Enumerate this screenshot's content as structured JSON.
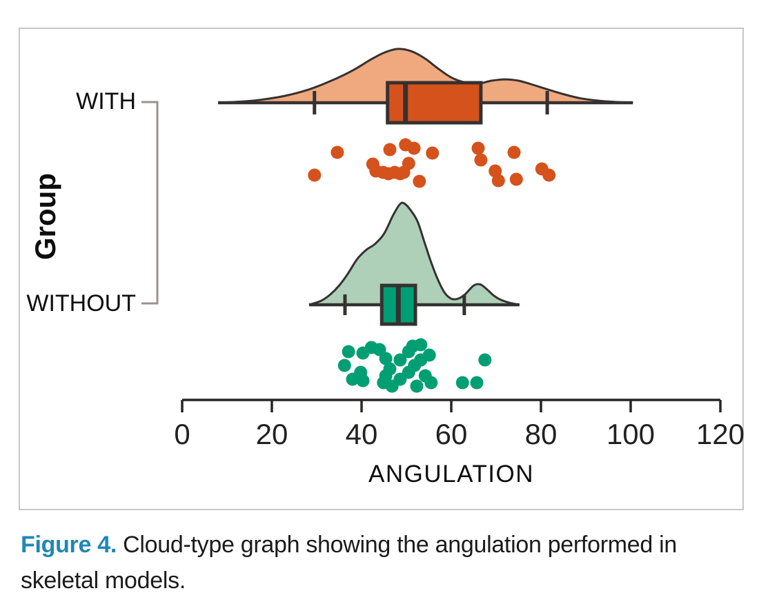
{
  "labels": {
    "y_axis": "Group",
    "x_axis": "ANGULATION"
  },
  "caption": {
    "prefix": "Figure 4.",
    "line1": "Cloud-type graph showing the angulation performed in",
    "line2": "skeletal models."
  },
  "colors": {
    "figure_label_blue": "#1f87b7",
    "outline_dark": "#363131",
    "axis_dark": "#282424",
    "bracket_gray": "#9b918f"
  },
  "chart_data": {
    "type": "raincloud (half-density + boxplot + jittered strip)",
    "title": "",
    "xlabel": "ANGULATION",
    "ylabel": "Group",
    "xlim": [
      0,
      120
    ],
    "x_ticks": [
      0,
      20,
      40,
      60,
      80,
      100,
      120
    ],
    "categories": [
      "WITH",
      "WITHOUT"
    ],
    "groups": [
      {
        "name": "WITH",
        "color": "#d5521c",
        "density_fill": "#f0a97e",
        "box": {
          "whisker_low": 29.5,
          "q1": 45.8,
          "median": 49.8,
          "q3": 66.6,
          "whisker_high": 81.4
        },
        "density_range": [
          8,
          100.5
        ],
        "density_profile": [
          [
            8,
            0
          ],
          [
            13,
            0.02
          ],
          [
            18,
            0.06
          ],
          [
            23,
            0.13
          ],
          [
            28,
            0.24
          ],
          [
            33,
            0.4
          ],
          [
            38,
            0.6
          ],
          [
            42,
            0.8
          ],
          [
            45,
            0.93
          ],
          [
            48,
            1.0
          ],
          [
            51,
            0.96
          ],
          [
            54,
            0.83
          ],
          [
            57,
            0.64
          ],
          [
            60,
            0.47
          ],
          [
            63,
            0.38
          ],
          [
            66,
            0.355
          ],
          [
            69,
            0.41
          ],
          [
            72,
            0.435
          ],
          [
            75,
            0.41
          ],
          [
            78,
            0.34
          ],
          [
            81,
            0.26
          ],
          [
            85,
            0.16
          ],
          [
            89,
            0.08
          ],
          [
            94,
            0.03
          ],
          [
            100.5,
            0
          ]
        ],
        "points": [
          [
            29.5,
            19
          ],
          [
            34.6,
            -14
          ],
          [
            42.5,
            3
          ],
          [
            43.2,
            13
          ],
          [
            44.8,
            15
          ],
          [
            46.0,
            17
          ],
          [
            46.3,
            -18
          ],
          [
            47.4,
            15
          ],
          [
            48.6,
            17
          ],
          [
            49.4,
            15
          ],
          [
            49.8,
            -25
          ],
          [
            50.5,
            2
          ],
          [
            51.7,
            -20
          ],
          [
            52.9,
            28
          ],
          [
            55.8,
            -13
          ],
          [
            66.0,
            -20
          ],
          [
            66.6,
            -3
          ],
          [
            69.8,
            13
          ],
          [
            70.5,
            27
          ],
          [
            74.0,
            -14
          ],
          [
            74.5,
            25
          ],
          [
            80.2,
            10
          ],
          [
            81.8,
            19
          ]
        ]
      },
      {
        "name": "WITHOUT",
        "color": "#009e73",
        "density_fill": "#aed0b8",
        "box": {
          "whisker_low": 36.3,
          "q1": 44.5,
          "median": 48.2,
          "q3": 52.0,
          "whisker_high": 62.9
        },
        "density_range": [
          28.3,
          75.2
        ],
        "density_profile": [
          [
            28.3,
            0
          ],
          [
            31,
            0.04
          ],
          [
            33,
            0.1
          ],
          [
            35,
            0.19
          ],
          [
            37,
            0.31
          ],
          [
            39,
            0.45
          ],
          [
            41,
            0.54
          ],
          [
            43,
            0.6
          ],
          [
            45,
            0.7
          ],
          [
            47,
            0.88
          ],
          [
            48.5,
            0.99
          ],
          [
            49.5,
            1.0
          ],
          [
            51,
            0.93
          ],
          [
            52.5,
            0.82
          ],
          [
            54,
            0.62
          ],
          [
            55.5,
            0.42
          ],
          [
            57,
            0.25
          ],
          [
            58.5,
            0.12
          ],
          [
            60,
            0.06
          ],
          [
            61.5,
            0.06
          ],
          [
            63,
            0.1
          ],
          [
            65,
            0.19
          ],
          [
            66.5,
            0.2
          ],
          [
            68,
            0.15
          ],
          [
            69.5,
            0.09
          ],
          [
            71,
            0.05
          ],
          [
            73,
            0.02
          ],
          [
            75.2,
            0
          ]
        ],
        "points": [
          [
            36.2,
            0
          ],
          [
            37.1,
            -20
          ],
          [
            38.0,
            20
          ],
          [
            39.8,
            10
          ],
          [
            40.3,
            -18
          ],
          [
            40.3,
            22
          ],
          [
            42.2,
            -26
          ],
          [
            44.0,
            -23
          ],
          [
            44.9,
            25
          ],
          [
            45.4,
            -10
          ],
          [
            45.4,
            15
          ],
          [
            46.3,
            5
          ],
          [
            46.8,
            30
          ],
          [
            48.6,
            20
          ],
          [
            48.6,
            -8
          ],
          [
            50.5,
            -20
          ],
          [
            50.5,
            10
          ],
          [
            51.4,
            -28
          ],
          [
            51.8,
            0
          ],
          [
            52.3,
            30
          ],
          [
            53.2,
            -30
          ],
          [
            53.2,
            -8
          ],
          [
            54.2,
            15
          ],
          [
            55.1,
            -15
          ],
          [
            55.5,
            25
          ],
          [
            62.5,
            25
          ],
          [
            65.7,
            25
          ],
          [
            67.5,
            -8
          ]
        ]
      }
    ],
    "legend": "none",
    "grid": "off"
  }
}
